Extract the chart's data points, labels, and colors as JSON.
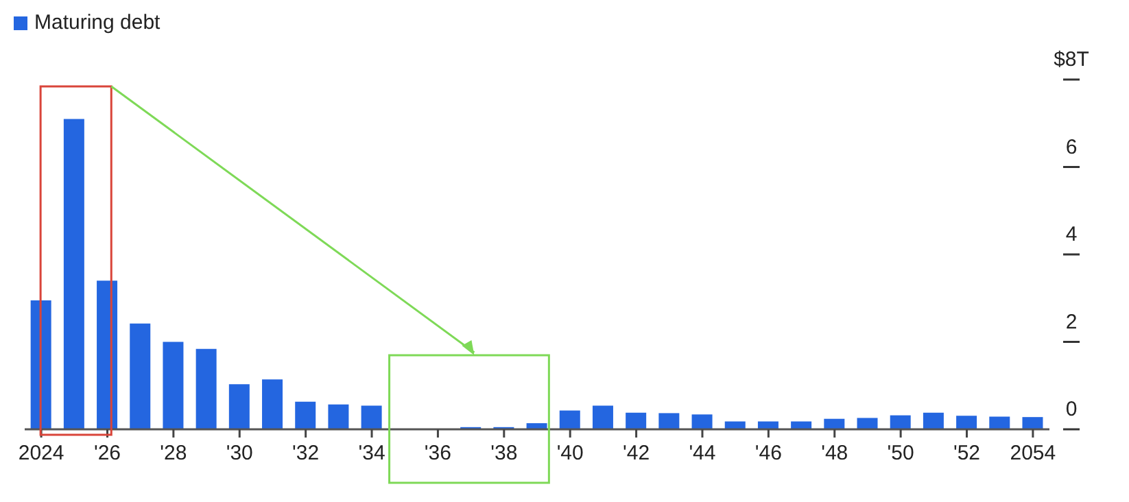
{
  "chart_data": {
    "type": "bar",
    "categories": [
      "2024",
      null,
      "'26",
      null,
      "'28",
      null,
      "'30",
      null,
      "'32",
      null,
      "'34",
      null,
      "'36",
      null,
      "'38",
      null,
      "'40",
      null,
      "'42",
      null,
      "'44",
      null,
      "'46",
      null,
      "'48",
      null,
      "'50",
      null,
      "'52",
      null,
      "2054"
    ],
    "series": [
      {
        "name": "Maturing debt",
        "color": "#2466e0",
        "values": [
          2.95,
          7.1,
          3.4,
          2.42,
          2.0,
          1.84,
          1.03,
          1.14,
          0.63,
          0.57,
          0.54,
          null,
          null,
          0.05,
          0.05,
          0.14,
          0.43,
          0.54,
          0.38,
          0.37,
          0.34,
          0.18,
          0.18,
          0.18,
          0.24,
          0.26,
          0.32,
          0.38,
          0.31,
          0.29,
          0.28
        ]
      }
    ],
    "ylim": [
      0,
      8
    ],
    "yticks": [
      0,
      2,
      4,
      6,
      {
        "value": 8,
        "label": "$8T"
      }
    ],
    "legend": "top left",
    "grid": false
  }
}
